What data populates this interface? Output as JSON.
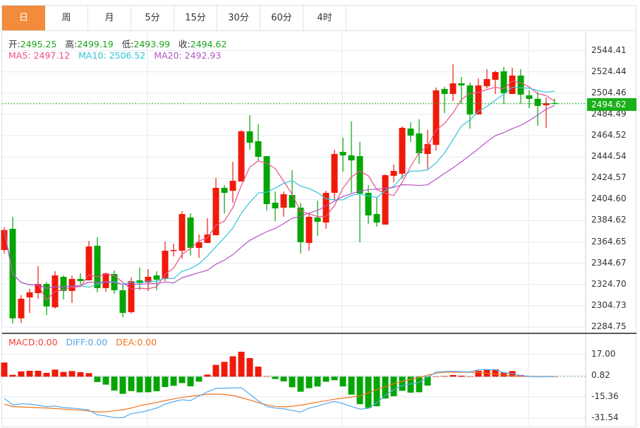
{
  "tabs": [
    {
      "label": "日",
      "active": true
    },
    {
      "label": "周"
    },
    {
      "label": "月"
    },
    {
      "label": "5分"
    },
    {
      "label": "15分"
    },
    {
      "label": "30分"
    },
    {
      "label": "60分"
    },
    {
      "label": "4时"
    }
  ],
  "ohlc_header": {
    "open_label": "开:",
    "open": "2495.25",
    "high_label": "高:",
    "high": "2499.19",
    "low_label": "低:",
    "low": "2493.99",
    "close_label": "收:",
    "close": "2494.62"
  },
  "ma_header": {
    "ma5_label": "MA5:",
    "ma5": "2497.12",
    "ma10_label": "MA10:",
    "ma10": "2506.52",
    "ma20_label": "MA20:",
    "ma20": "2492.93"
  },
  "macd_header": {
    "macd_label": "MACD:",
    "macd": "0.00",
    "diff_label": "DIFF:",
    "diff": "0.00",
    "dea_label": "DEA:",
    "dea": "0.00"
  },
  "current_price": "2494.62",
  "colors": {
    "up": "#f01a0a",
    "down": "#05a505",
    "ma5": "#ee4e8a",
    "ma10": "#33c3d9",
    "ma20": "#b454c4",
    "diff": "#52a8ee",
    "dea": "#f2741c",
    "accent": "#f28c3c"
  },
  "chart_data": [
    {
      "type": "candlestick",
      "title": "",
      "ylim": [
        2284.75,
        2544.41
      ],
      "y_ticks": [
        "2544.41",
        "2524.44",
        "2504.46",
        "2484.49",
        "2464.52",
        "2444.54",
        "2424.57",
        "2404.60",
        "2384.62",
        "2364.65",
        "2344.67",
        "2324.70",
        "2304.73",
        "2284.75"
      ],
      "ohlc": [
        [
          2357.1,
          2378.5,
          2353.8,
          2375.9
        ],
        [
          2377.0,
          2388.3,
          2288.1,
          2292.9
        ],
        [
          2292.9,
          2314.6,
          2288.7,
          2311.3
        ],
        [
          2312.6,
          2320.6,
          2298.0,
          2317.3
        ],
        [
          2316.6,
          2341.8,
          2311.3,
          2325.2
        ],
        [
          2325.2,
          2327.2,
          2296.0,
          2304.0
        ],
        [
          2303.3,
          2337.2,
          2302.0,
          2333.2
        ],
        [
          2331.9,
          2333.2,
          2310.6,
          2318.6
        ],
        [
          2318.6,
          2333.2,
          2307.3,
          2329.9
        ],
        [
          2329.9,
          2335.2,
          2324.6,
          2327.9
        ],
        [
          2328.6,
          2365.7,
          2328.6,
          2360.4
        ],
        [
          2361.1,
          2369.0,
          2317.3,
          2321.3
        ],
        [
          2321.3,
          2335.9,
          2317.9,
          2335.2
        ],
        [
          2334.5,
          2337.8,
          2315.9,
          2319.3
        ],
        [
          2319.3,
          2324.6,
          2294.0,
          2298.0
        ],
        [
          2298.7,
          2331.2,
          2297.4,
          2327.9
        ],
        [
          2328.6,
          2340.5,
          2319.3,
          2325.9
        ],
        [
          2326.6,
          2339.2,
          2318.6,
          2331.9
        ],
        [
          2333.2,
          2337.2,
          2319.3,
          2329.2
        ],
        [
          2329.9,
          2365.0,
          2327.9,
          2356.4
        ],
        [
          2356.4,
          2363.1,
          2351.1,
          2357.1
        ],
        [
          2356.4,
          2393.6,
          2349.1,
          2390.9
        ],
        [
          2387.6,
          2391.6,
          2351.8,
          2359.1
        ],
        [
          2359.1,
          2371.7,
          2349.8,
          2364.4
        ],
        [
          2363.7,
          2387.0,
          2363.7,
          2371.7
        ],
        [
          2371.0,
          2424.8,
          2371.0,
          2415.5
        ],
        [
          2415.5,
          2418.1,
          2391.6,
          2410.8
        ],
        [
          2412.8,
          2440.0,
          2401.5,
          2422.1
        ],
        [
          2421.5,
          2469.9,
          2421.5,
          2468.6
        ],
        [
          2468.6,
          2483.8,
          2451.3,
          2457.9
        ],
        [
          2459.3,
          2475.2,
          2441.3,
          2444.7
        ],
        [
          2445.3,
          2445.3,
          2394.2,
          2400.2
        ],
        [
          2401.5,
          2412.1,
          2384.3,
          2396.2
        ],
        [
          2396.9,
          2412.1,
          2388.3,
          2409.5
        ],
        [
          2408.8,
          2432.1,
          2396.9,
          2396.9
        ],
        [
          2396.9,
          2401.5,
          2353.8,
          2364.4
        ],
        [
          2363.7,
          2391.6,
          2356.4,
          2388.3
        ],
        [
          2387.6,
          2403.5,
          2370.3,
          2383.6
        ],
        [
          2382.9,
          2412.8,
          2377.0,
          2410.8
        ],
        [
          2410.8,
          2451.3,
          2404.2,
          2447.3
        ],
        [
          2449.3,
          2462.6,
          2430.7,
          2446.0
        ],
        [
          2446.0,
          2477.9,
          2410.8,
          2441.3
        ],
        [
          2445.3,
          2458.6,
          2364.4,
          2410.2
        ],
        [
          2410.8,
          2418.1,
          2381.6,
          2389.6
        ],
        [
          2390.9,
          2406.2,
          2379.0,
          2382.9
        ],
        [
          2381.0,
          2428.1,
          2381.0,
          2427.4
        ],
        [
          2426.8,
          2437.4,
          2420.8,
          2431.4
        ],
        [
          2428.8,
          2473.2,
          2424.1,
          2471.9
        ],
        [
          2471.2,
          2477.2,
          2458.6,
          2464.6
        ],
        [
          2466.6,
          2479.9,
          2438.0,
          2448.0
        ],
        [
          2447.3,
          2469.9,
          2433.4,
          2456.6
        ],
        [
          2455.9,
          2509.7,
          2450.6,
          2507.1
        ],
        [
          2508.4,
          2510.4,
          2485.8,
          2503.7
        ],
        [
          2503.7,
          2531.6,
          2497.1,
          2513.7
        ],
        [
          2513.7,
          2519.7,
          2494.4,
          2511.7
        ],
        [
          2511.7,
          2514.4,
          2471.2,
          2484.5
        ],
        [
          2484.5,
          2518.3,
          2484.5,
          2511.7
        ],
        [
          2511.0,
          2527.0,
          2509.0,
          2517.7
        ],
        [
          2517.0,
          2525.6,
          2503.7,
          2524.3
        ],
        [
          2525.0,
          2529.0,
          2494.4,
          2504.4
        ],
        [
          2503.7,
          2528.3,
          2503.7,
          2521.0
        ],
        [
          2521.0,
          2527.0,
          2494.4,
          2503.1
        ],
        [
          2502.4,
          2507.1,
          2490.5,
          2499.1
        ],
        [
          2499.1,
          2505.7,
          2473.9,
          2492.5
        ],
        [
          2493.1,
          2500.4,
          2471.9,
          2495.1
        ],
        [
          2495.25,
          2499.19,
          2493.99,
          2494.62
        ]
      ],
      "ohlc_order": [
        "open",
        "high",
        "low",
        "close"
      ],
      "series": [
        "MA5",
        "MA10",
        "MA20"
      ]
    },
    {
      "type": "bar+line",
      "title": "MACD",
      "ylim": [
        -31.54,
        17.0
      ],
      "y_ticks": [
        "17.00",
        "0.82",
        "-15.36",
        "-31.54"
      ],
      "histogram": [
        10.8,
        1.4,
        4.0,
        4.5,
        4.5,
        2.9,
        5.4,
        3.6,
        4.3,
        3.4,
        2.7,
        -4.1,
        -6.1,
        -10.6,
        -13.1,
        -11.0,
        -12.0,
        -11.9,
        -11.1,
        -7.9,
        -7.0,
        -4.9,
        -7.4,
        -3.8,
        1.6,
        9.0,
        11.3,
        15.5,
        19.0,
        14.2,
        7.7,
        0.3,
        -1.8,
        -3.6,
        -8.1,
        -11.5,
        -8.8,
        -7.5,
        -3.9,
        -2.7,
        -7.5,
        -13.7,
        -21.0,
        -23.9,
        -22.6,
        -16.7,
        -14.9,
        -10.8,
        -12.2,
        -11.9,
        -6.8,
        0.0,
        0.4,
        1.3,
        0.7,
        0.1,
        4.5,
        5.4,
        5.6,
        3.2,
        4.3,
        1.3,
        0.4,
        0.1,
        0.0,
        0.0
      ],
      "diff": [
        -16.5,
        -21.6,
        -20.7,
        -21.0,
        -21.8,
        -23.0,
        -22.3,
        -23.7,
        -24.0,
        -24.6,
        -25.6,
        -29.1,
        -30.0,
        -31.2,
        -31.3,
        -28.3,
        -27.3,
        -25.8,
        -24.0,
        -20.9,
        -19.1,
        -17.6,
        -18.3,
        -14.8,
        -11.5,
        -9.0,
        -8.8,
        -8.6,
        -8.4,
        -13.4,
        -18.5,
        -22.8,
        -24.0,
        -24.5,
        -25.8,
        -27.0,
        -24.0,
        -22.6,
        -20.5,
        -18.9,
        -20.6,
        -22.7,
        -24.8,
        -24.2,
        -20.0,
        -14.2,
        -10.0,
        -6.8,
        -5.6,
        -4.4,
        -0.5,
        3.6,
        3.9,
        4.1,
        3.8,
        3.6,
        5.2,
        5.4,
        5.2,
        3.0,
        2.4,
        0.8,
        0.2,
        -0.2,
        0.0,
        0.0
      ],
      "dea": [
        -20.9,
        -22.8,
        -23.1,
        -23.4,
        -23.7,
        -24.0,
        -24.3,
        -24.8,
        -25.2,
        -25.6,
        -26.2,
        -27.0,
        -26.8,
        -26.0,
        -25.3,
        -24.0,
        -22.1,
        -21.0,
        -19.6,
        -18.3,
        -17.0,
        -15.9,
        -15.0,
        -14.2,
        -13.4,
        -13.3,
        -13.6,
        -14.4,
        -16.0,
        -17.8,
        -19.8,
        -21.5,
        -22.7,
        -23.0,
        -22.6,
        -21.8,
        -20.6,
        -19.4,
        -18.4,
        -17.2,
        -16.4,
        -15.6,
        -14.6,
        -12.3,
        -10.0,
        -7.6,
        -5.4,
        -3.6,
        -2.0,
        -0.8,
        1.2,
        2.6,
        3.3,
        3.4,
        3.4,
        3.3,
        3.2,
        2.6,
        2.0,
        1.2,
        0.6,
        0.3,
        0.1,
        0.0,
        0.0,
        0.0
      ]
    }
  ]
}
